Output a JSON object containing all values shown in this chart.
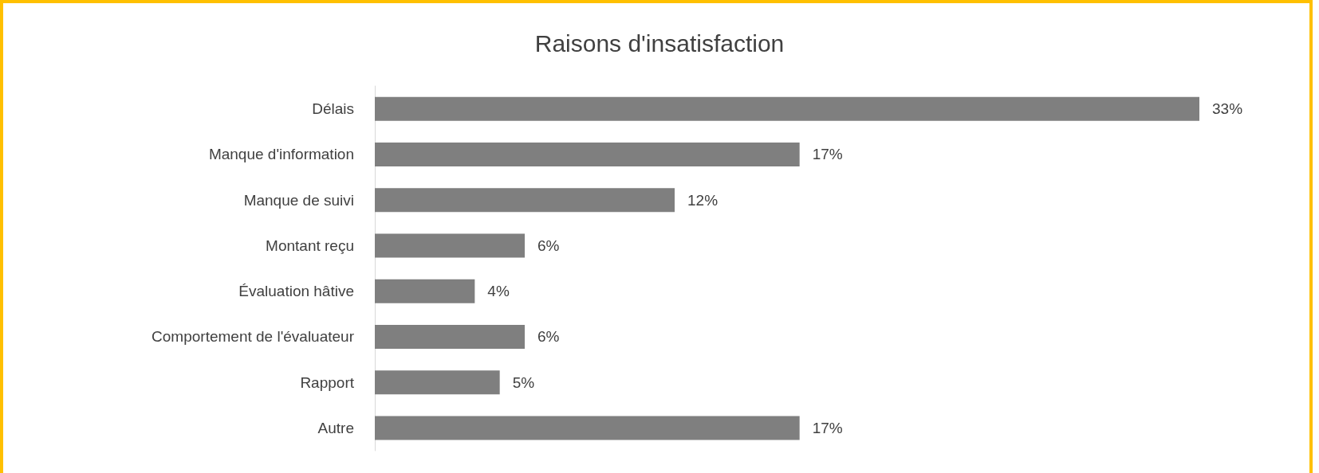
{
  "chart_data": {
    "type": "bar",
    "title": "Raisons d'insatisfaction",
    "orientation": "horizontal",
    "categories": [
      "Délais",
      "Manque d'information",
      "Manque de suivi",
      "Montant reçu",
      "Évaluation hâtive",
      "Comportement de l'évaluateur",
      "Rapport",
      "Autre"
    ],
    "values": [
      33,
      17,
      12,
      6,
      4,
      6,
      5,
      17
    ],
    "value_labels": [
      "33%",
      "17%",
      "12%",
      "6%",
      "4%",
      "6%",
      "5%",
      "17%"
    ],
    "color": "#7f7f7f"
  }
}
